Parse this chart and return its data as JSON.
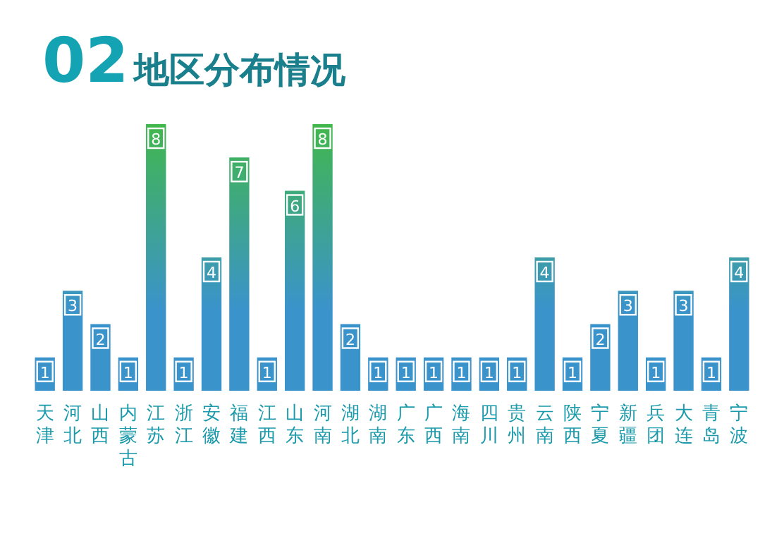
{
  "chart_data": {
    "type": "bar",
    "title": "02地区分布情况",
    "categories": [
      "天津",
      "河北",
      "山西",
      "内蒙古",
      "江苏",
      "浙江",
      "安徽",
      "福建",
      "江西",
      "山东",
      "河南",
      "湖北",
      "湖南",
      "广东",
      "广西",
      "海南",
      "四川",
      "贵州",
      "云南",
      "陕西",
      "宁夏",
      "新疆",
      "兵团",
      "大连",
      "青岛",
      "宁波"
    ],
    "values": [
      1,
      3,
      2,
      1,
      8,
      1,
      4,
      7,
      1,
      6,
      8,
      2,
      1,
      1,
      1,
      1,
      1,
      1,
      4,
      1,
      2,
      3,
      1,
      3,
      1,
      4
    ],
    "color": "#3b93cc",
    "data_labels": true
  }
}
